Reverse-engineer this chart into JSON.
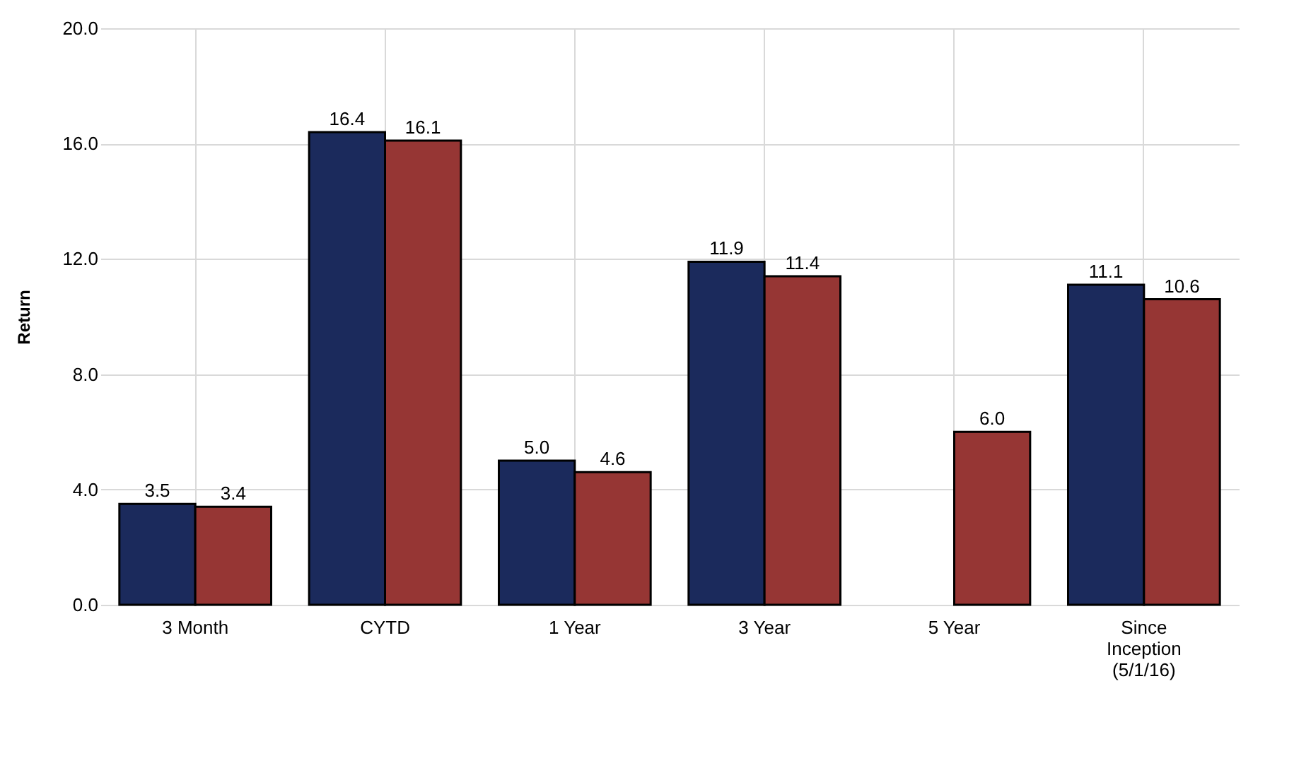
{
  "chart_data": {
    "type": "bar",
    "ylabel": "Return",
    "categories": [
      "3 Month",
      "CYTD",
      "1 Year",
      "3 Year",
      "5 Year",
      "Since Inception (5/1/16)"
    ],
    "series": [
      {
        "color": "#1b2a5c",
        "values": [
          3.5,
          16.4,
          5.0,
          11.9,
          null,
          11.1
        ],
        "value_labels": [
          "3.5",
          "16.4",
          "5.0",
          "11.9",
          null,
          "11.1"
        ]
      },
      {
        "color": "#963634",
        "values": [
          3.4,
          16.1,
          4.6,
          11.4,
          6.0,
          10.6
        ],
        "value_labels": [
          "3.4",
          "16.1",
          "4.6",
          "11.4",
          "6.0",
          "10.6"
        ]
      }
    ],
    "ylim": [
      0,
      20
    ],
    "yticks": [
      {
        "value": 0,
        "label": "0.0"
      },
      {
        "value": 4,
        "label": "4.0"
      },
      {
        "value": 8,
        "label": "8.0"
      },
      {
        "value": 12,
        "label": "12.0"
      },
      {
        "value": 16,
        "label": "16.0"
      },
      {
        "value": 20,
        "label": "20.0"
      }
    ],
    "grid": true
  }
}
